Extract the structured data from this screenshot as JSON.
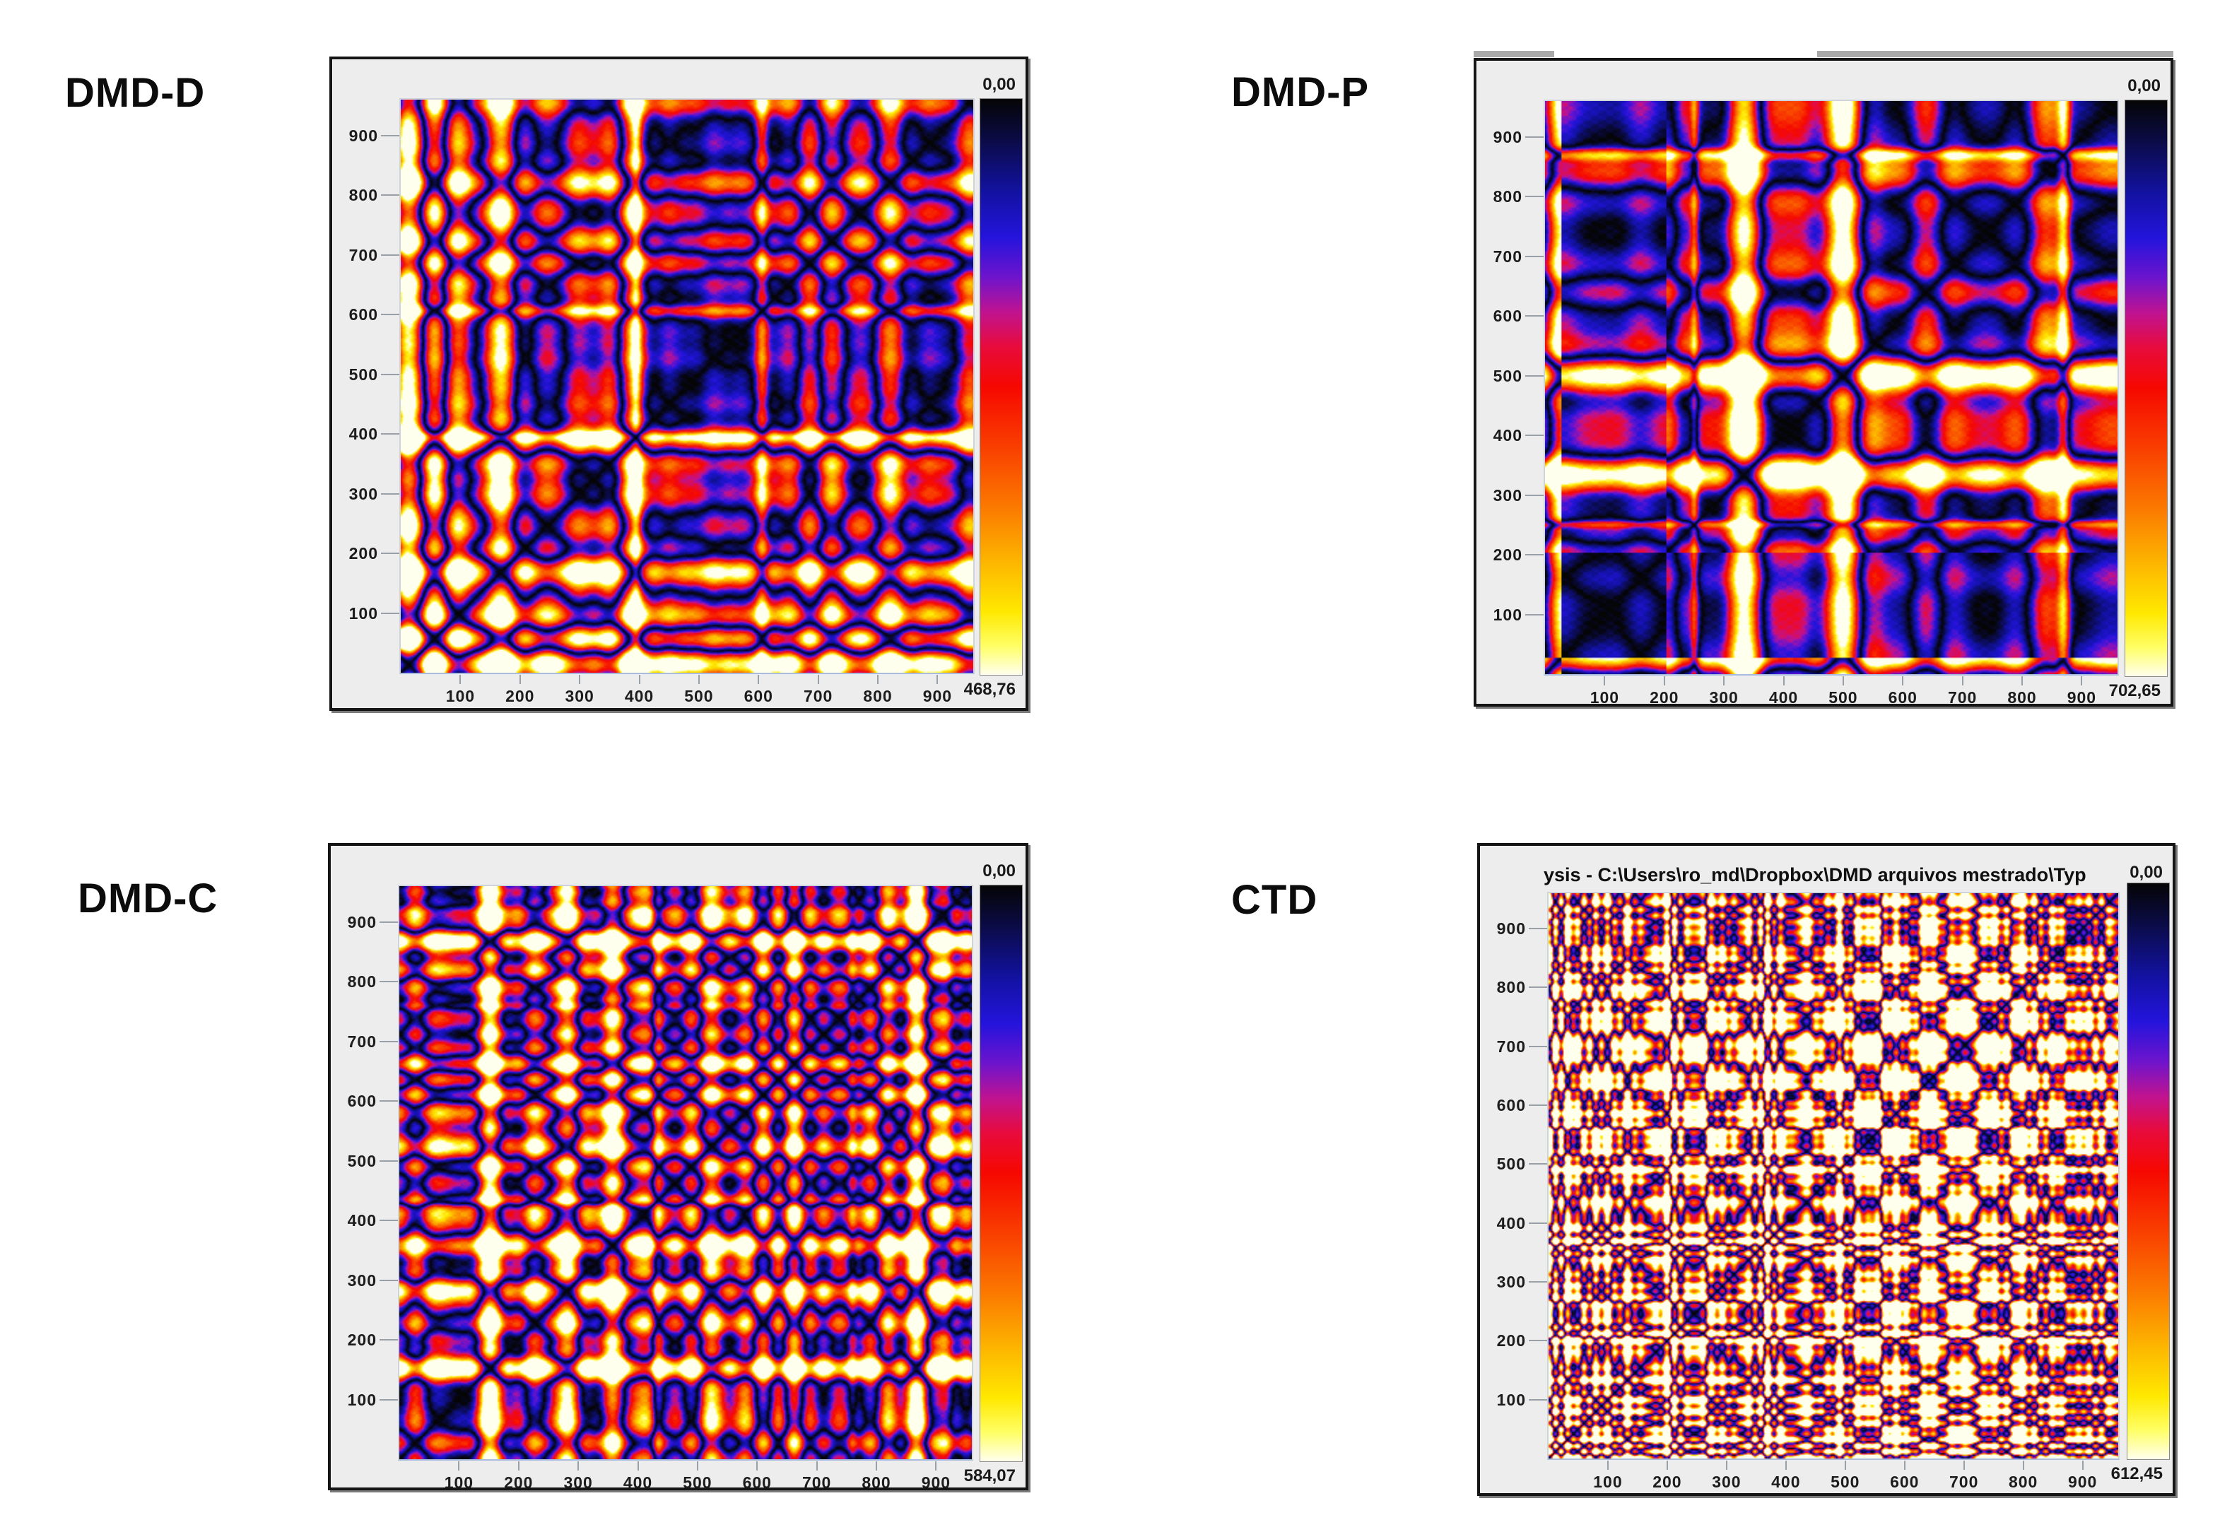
{
  "figure": {
    "background": "#ffffff",
    "panel_background": "#ededed",
    "panel_border_color": "#151515",
    "tick_text_color": "#1c1c1c",
    "tick_line_color": "#9aa0a8"
  },
  "axis": {
    "ticks": [
      100,
      200,
      300,
      400,
      500,
      600,
      700,
      800,
      900
    ],
    "max": 960
  },
  "colormap": {
    "stops": [
      [
        0.0,
        "#050505"
      ],
      [
        0.07,
        "#0b0b46"
      ],
      [
        0.16,
        "#1212a0"
      ],
      [
        0.24,
        "#2414dc"
      ],
      [
        0.31,
        "#6e14cc"
      ],
      [
        0.37,
        "#c01390"
      ],
      [
        0.43,
        "#e80b3c"
      ],
      [
        0.5,
        "#f60800"
      ],
      [
        0.6,
        "#f93c00"
      ],
      [
        0.71,
        "#fb7a00"
      ],
      [
        0.81,
        "#fdb900"
      ],
      [
        0.89,
        "#ffe800"
      ],
      [
        0.95,
        "#ffff66"
      ],
      [
        1.0,
        "#ffffee"
      ]
    ]
  },
  "panels": [
    {
      "label": "DMD-D",
      "colorbar_top": "0,00",
      "colorbar_bottom": "468,76",
      "gen": {
        "seed": 11,
        "ncomp": 13,
        "fmin": 2,
        "fmax": 18,
        "gain": 2.2,
        "noise": 0.05,
        "damp": [],
        "spikes": [
          {
            "at": 0.63,
            "amp": 0.5,
            "width": 0.008
          },
          {
            "at": 0.41,
            "amp": 0.38,
            "width": 0.006
          }
        ]
      }
    },
    {
      "label": "DMD-P",
      "colorbar_top": "0,00",
      "colorbar_bottom": "702,65",
      "gen": {
        "seed": 23,
        "ncomp": 12,
        "fmin": 1.8,
        "fmax": 15,
        "gain": 2.2,
        "noise": 0.05,
        "damp": [
          {
            "from": 0.03,
            "to": 0.21,
            "factor": 0.15
          }
        ],
        "spikes": [
          {
            "at": 0.905,
            "amp": 0.6,
            "width": 0.008
          },
          {
            "at": 0.26,
            "amp": 0.4,
            "width": 0.005
          }
        ]
      }
    },
    {
      "label": "DMD-C",
      "colorbar_top": "0,00",
      "colorbar_bottom": "584,07",
      "gen": {
        "seed": 5,
        "ncomp": 14,
        "fmin": 2.5,
        "fmax": 22,
        "gain": 2.1,
        "noise": 0.06,
        "damp": [],
        "spikes": [
          {
            "at": 0.45,
            "amp": 0.55,
            "width": 0.007
          },
          {
            "at": 0.955,
            "amp": 0.5,
            "width": 0.009
          },
          {
            "at": 0.79,
            "amp": 0.35,
            "width": 0.006
          }
        ]
      }
    },
    {
      "label": "CTD",
      "colorbar_top": "0,00",
      "colorbar_bottom": "612,45",
      "window_title": "ysis  -  C:\\Users\\ro_md\\Dropbox\\DMD arquivos mestrado\\Typ",
      "gen": {
        "seed": 31,
        "ncomp": 18,
        "fmin": 6,
        "fmax": 55,
        "gain": 2.9,
        "noise": 0.07,
        "damp": [],
        "spikes": [
          {
            "at": 0.27,
            "amp": 0.3,
            "width": 0.004
          },
          {
            "at": 0.62,
            "amp": 0.28,
            "width": 0.004
          }
        ]
      }
    }
  ],
  "chart_data": [
    {
      "type": "heatmap",
      "title": "DMD-D",
      "subtype": "distance-matrix recurrence plot",
      "x_range": [
        0,
        960
      ],
      "y_range": [
        0,
        960
      ],
      "x_ticks": [
        100,
        200,
        300,
        400,
        500,
        600,
        700,
        800,
        900
      ],
      "y_ticks": [
        100,
        200,
        300,
        400,
        500,
        600,
        700,
        800,
        900
      ],
      "colorbar": {
        "top_label": "0,00",
        "bottom_label": "468,76",
        "min": 0,
        "max": 468.76,
        "palette_top_to_bottom": [
          "black",
          "dark blue",
          "blue",
          "purple",
          "magenta",
          "red",
          "orange",
          "yellow",
          "near-white"
        ]
      },
      "legend_position": "right",
      "grid": false,
      "features": [
        "black zero-distance main diagonal",
        "red-dominant plaid texture",
        "large blue block clusters (similar epochs) across lower-left region",
        "yellow high-distance streaks near x≈600 and x≈410"
      ]
    },
    {
      "type": "heatmap",
      "title": "DMD-P",
      "subtype": "distance-matrix recurrence plot",
      "x_range": [
        0,
        960
      ],
      "y_range": [
        0,
        960
      ],
      "x_ticks": [
        100,
        200,
        300,
        400,
        500,
        600,
        700,
        800,
        900
      ],
      "y_ticks": [
        100,
        200,
        300,
        400,
        500,
        600,
        700,
        800,
        900
      ],
      "colorbar": {
        "top_label": "0,00",
        "bottom_label": "702,65",
        "min": 0,
        "max": 702.65,
        "palette_top_to_bottom": [
          "black",
          "dark blue",
          "blue",
          "purple",
          "magenta",
          "red",
          "orange",
          "yellow",
          "near-white"
        ]
      },
      "legend_position": "right",
      "grid": false,
      "features": [
        "black main diagonal",
        "deep blue vertical/horizontal band over samples ≈30–200 with dark blue block at bottom-left corner",
        "yellow high-distance cross near sample ≈880",
        "saturated red/blue plaid elsewhere"
      ]
    },
    {
      "type": "heatmap",
      "title": "DMD-C",
      "subtype": "distance-matrix recurrence plot",
      "x_range": [
        0,
        960
      ],
      "y_range": [
        0,
        960
      ],
      "x_ticks": [
        100,
        200,
        300,
        400,
        500,
        600,
        700,
        800,
        900
      ],
      "y_ticks": [
        100,
        200,
        300,
        400,
        500,
        600,
        700,
        800,
        900
      ],
      "colorbar": {
        "top_label": "0,00",
        "bottom_label": "584,07",
        "min": 0,
        "max": 584.07,
        "palette_top_to_bottom": [
          "black",
          "dark blue",
          "blue",
          "purple",
          "magenta",
          "red",
          "orange",
          "yellow",
          "near-white"
        ]
      },
      "legend_position": "right",
      "grid": false,
      "features": [
        "black main diagonal with dark knot near ≈430",
        "mottled red/blue texture",
        "yellow vertical bands near x≈430 and x≈930",
        "yellow horizontal bands near y≈760"
      ]
    },
    {
      "type": "heatmap",
      "title": "CTD",
      "subtype": "distance-matrix recurrence plot",
      "window_title": "ysis  -  C:\\Users\\ro_md\\Dropbox\\DMD arquivos mestrado\\Typ",
      "x_range": [
        0,
        960
      ],
      "y_range": [
        0,
        960
      ],
      "x_ticks": [
        100,
        200,
        300,
        400,
        500,
        600,
        700,
        800,
        900
      ],
      "y_ticks": [
        100,
        200,
        300,
        400,
        500,
        600,
        700,
        800,
        900
      ],
      "colorbar": {
        "top_label": "0,00",
        "bottom_label": "612,45",
        "min": 0,
        "max": 612.45,
        "palette_top_to_bottom": [
          "black",
          "dark blue",
          "blue",
          "purple",
          "magenta",
          "red",
          "orange",
          "yellow",
          "near-white"
        ]
      },
      "legend_position": "right",
      "grid": false,
      "features": [
        "fine-grained orange/red dominant texture",
        "thin dark main diagonal",
        "scattered small blue-purple patches",
        "thin yellow column/row streaks",
        "fine diagonal hatching"
      ]
    }
  ]
}
